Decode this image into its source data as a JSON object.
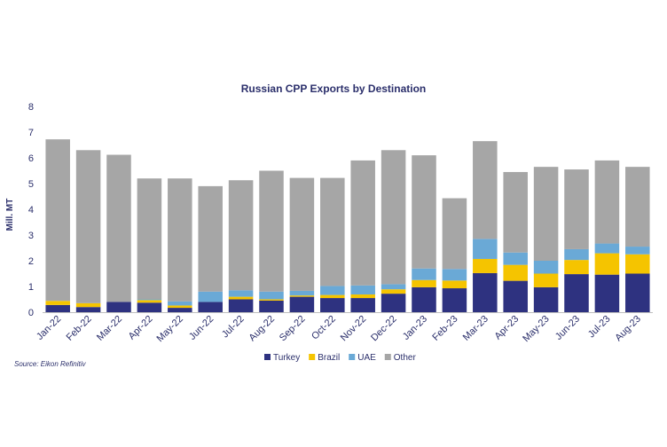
{
  "chart_data": {
    "type": "bar",
    "stacked": true,
    "title": "Russian CPP Exports by Destination",
    "ylabel": "Mill. MT",
    "xlabel": "",
    "ylim": [
      0,
      8
    ],
    "yticks": [
      0,
      1,
      2,
      3,
      4,
      5,
      6,
      7,
      8
    ],
    "grid": false,
    "legend_position": "bottom",
    "source": "Source: Eikon Refinitiv",
    "categories": [
      "Jan-22",
      "Feb-22",
      "Mar-22",
      "Apr-22",
      "May-22",
      "Jun-22",
      "Jul-22",
      "Aug-22",
      "Sep-22",
      "Oct-22",
      "Nov-22",
      "Dec-22",
      "Jan-23",
      "Feb-23",
      "Mar-23",
      "Apr-23",
      "May-23",
      "Jun-23",
      "Jul-23",
      "Aug-23"
    ],
    "series": [
      {
        "name": "Turkey",
        "color": "#2e3280",
        "values": [
          0.28,
          0.2,
          0.4,
          0.37,
          0.17,
          0.4,
          0.5,
          0.45,
          0.6,
          0.55,
          0.55,
          0.72,
          0.97,
          0.93,
          1.52,
          1.22,
          0.97,
          1.48,
          1.46,
          1.5
        ]
      },
      {
        "name": "Brazil",
        "color": "#f5c400",
        "values": [
          0.16,
          0.15,
          0.0,
          0.1,
          0.09,
          0.0,
          0.1,
          0.05,
          0.05,
          0.12,
          0.14,
          0.17,
          0.28,
          0.3,
          0.55,
          0.62,
          0.53,
          0.55,
          0.83,
          0.75
        ]
      },
      {
        "name": "UAE",
        "color": "#6aa9d6",
        "values": [
          0.0,
          0.0,
          0.0,
          0.03,
          0.16,
          0.4,
          0.25,
          0.3,
          0.18,
          0.35,
          0.35,
          0.2,
          0.45,
          0.45,
          0.78,
          0.48,
          0.5,
          0.42,
          0.38,
          0.3
        ]
      },
      {
        "name": "Other",
        "color": "#a6a6a6",
        "values": [
          6.28,
          5.95,
          5.72,
          4.7,
          4.78,
          4.1,
          4.28,
          4.7,
          4.39,
          4.2,
          4.86,
          5.21,
          4.4,
          2.75,
          3.8,
          3.13,
          3.65,
          3.1,
          3.23,
          3.1
        ]
      }
    ]
  }
}
